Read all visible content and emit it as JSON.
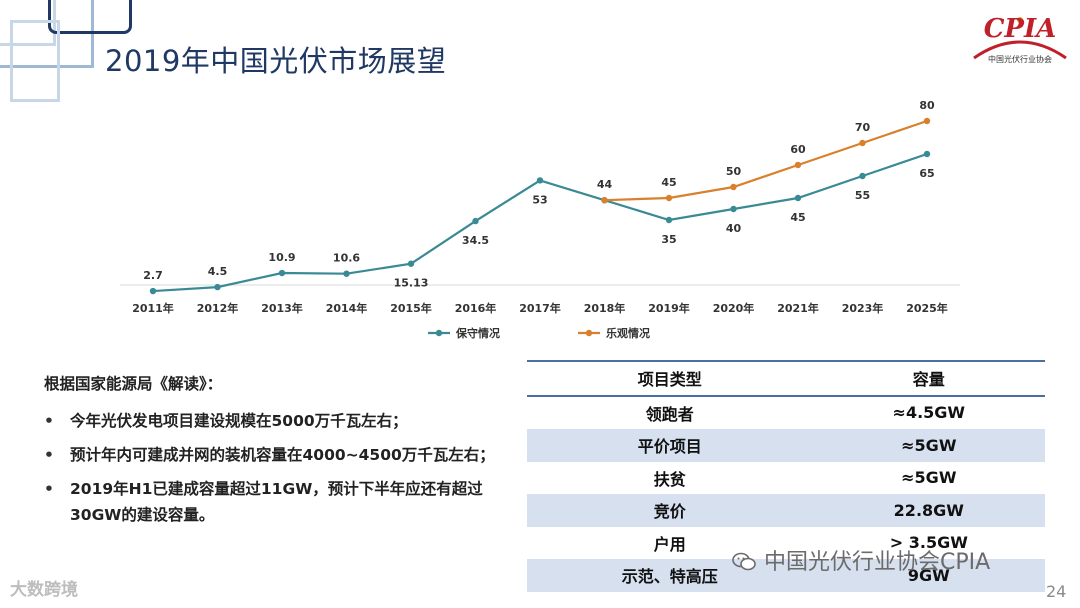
{
  "title": "2019年中国光伏市场展望",
  "logo": {
    "text": "CPIA",
    "subtitle": "中国光伏行业协会"
  },
  "colors": {
    "conservative": "#3a8a95",
    "optimistic": "#d9802c",
    "title": "#1f3864"
  },
  "chart_data": {
    "type": "line",
    "categories": [
      "2011年",
      "2012年",
      "2013年",
      "2014年",
      "2015年",
      "2016年",
      "2017年",
      "2018年",
      "2019年",
      "2020年",
      "2021年",
      "2023年",
      "2025年"
    ],
    "series": [
      {
        "name": "保守情况",
        "values": [
          2.7,
          4.5,
          10.9,
          10.6,
          15.13,
          34.5,
          53,
          44,
          35,
          40,
          45,
          55,
          65
        ],
        "labels": [
          "2.7",
          "4.5",
          "10.9",
          "10.6",
          "15.13",
          "34.5",
          "53",
          "44",
          "35",
          "40",
          "45",
          "55",
          "65"
        ]
      },
      {
        "name": "乐观情况",
        "values": [
          null,
          null,
          null,
          null,
          null,
          null,
          null,
          44,
          45,
          50,
          60,
          70,
          80
        ],
        "labels": [
          "",
          "",
          "",
          "",
          "",
          "",
          "",
          "",
          "45",
          "50",
          "60",
          "70",
          "80"
        ]
      }
    ],
    "ylim": [
      0,
      85
    ]
  },
  "bullets": {
    "heading": "根据国家能源局《解读》：",
    "items": [
      "今年光伏发电项目建设规模在5000万千瓦左右；",
      "预计年内可建成并网的装机容量在4000~4500万千瓦左右；",
      "2019年H1已建成容量超过11GW，预计下半年应还有超过30GW的建设容量。"
    ]
  },
  "table": {
    "headers": [
      "项目类型",
      "容量"
    ],
    "rows": [
      [
        "领跑者",
        "≈4.5GW"
      ],
      [
        "平价项目",
        "≈5GW"
      ],
      [
        "扶贫",
        "≈5GW"
      ],
      [
        "竞价",
        "22.8GW"
      ],
      [
        "户用",
        "> 3.5GW"
      ],
      [
        "示范、特高压",
        "9GW"
      ]
    ]
  },
  "wechat": "中国光伏行业协会CPIA",
  "watermark": "大数跨境",
  "page_number": "24"
}
